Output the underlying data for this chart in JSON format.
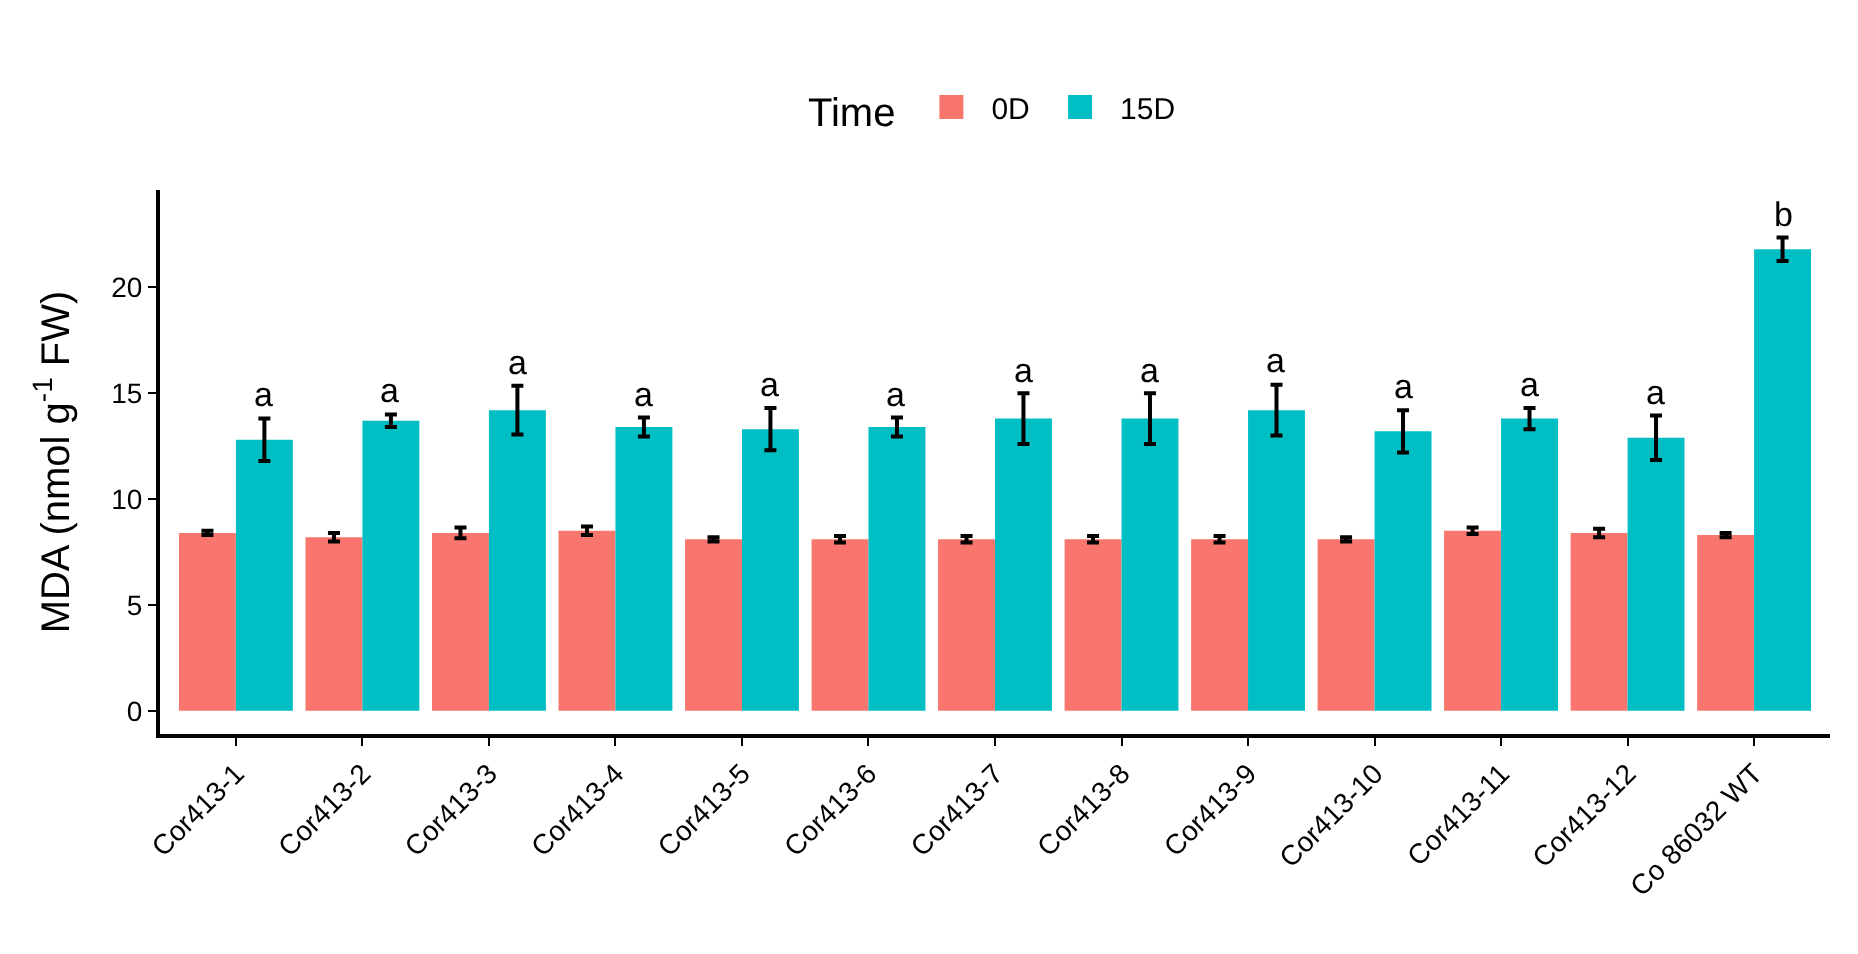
{
  "chart_data": {
    "type": "bar",
    "ylabel": "MDA (nmol g$^{-1}$ FW)",
    "legend_title": "Time",
    "legend": "top",
    "categories": [
      "Cor413-1",
      "Cor413-2",
      "Cor413-3",
      "Cor413-4",
      "Cor413-5",
      "Cor413-6",
      "Cor413-7",
      "Cor413-8",
      "Cor413-9",
      "Cor413-10",
      "Cor413-11",
      "Cor413-12",
      "Co 86032 WT"
    ],
    "series": [
      {
        "name": "0D",
        "color": "#f8766d",
        "values": [
          8.4,
          8.2,
          8.4,
          8.5,
          8.1,
          8.1,
          8.1,
          8.1,
          8.1,
          8.1,
          8.5,
          8.4,
          8.3
        ],
        "errors": [
          0.1,
          0.2,
          0.25,
          0.2,
          0.1,
          0.15,
          0.15,
          0.15,
          0.15,
          0.1,
          0.15,
          0.2,
          0.1
        ]
      },
      {
        "name": "15D",
        "color": "#00bfc4",
        "values": [
          12.8,
          13.7,
          14.2,
          13.4,
          13.3,
          13.4,
          13.8,
          13.8,
          14.2,
          13.2,
          13.8,
          12.9,
          21.8
        ],
        "errors": [
          1.0,
          0.3,
          1.15,
          0.45,
          1.0,
          0.45,
          1.2,
          1.2,
          1.2,
          1.0,
          0.5,
          1.05,
          0.55
        ]
      }
    ],
    "annotations": [
      "a",
      "a",
      "a",
      "a",
      "a",
      "a",
      "a",
      "a",
      "a",
      "a",
      "a",
      "a",
      "b"
    ],
    "ylim": [
      -1.1,
      24.6
    ],
    "yticks": [
      0,
      5,
      10,
      15,
      20
    ]
  }
}
